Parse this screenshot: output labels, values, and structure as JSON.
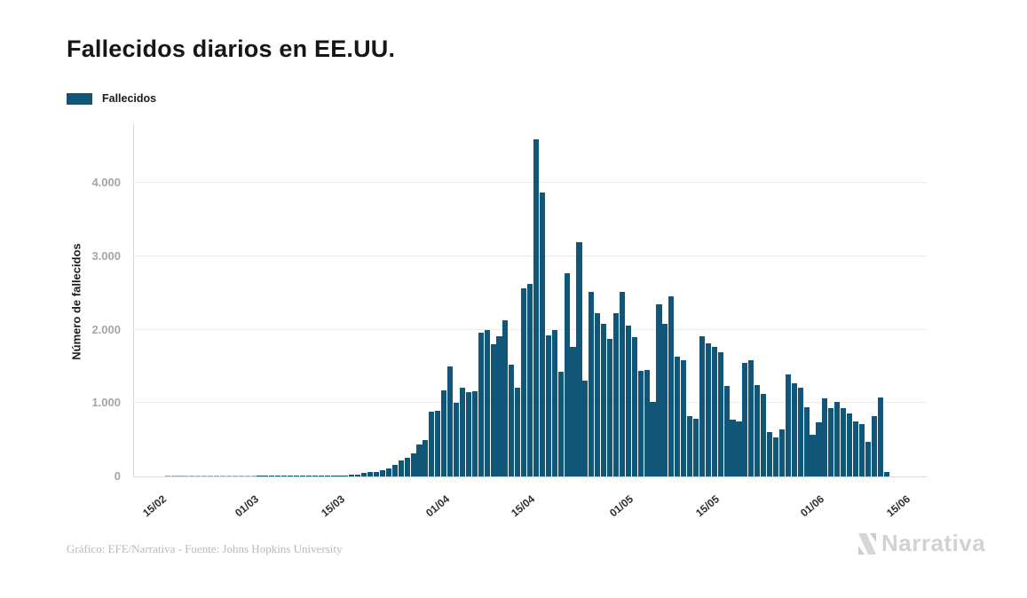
{
  "header": {
    "title": "Fallecidos diarios en EE.UU."
  },
  "legend": {
    "items": [
      {
        "label": "Fallecidos",
        "color": "#0f5679"
      }
    ]
  },
  "footer": {
    "credit": "Gráfico: EFE/Narrativa - Fuente: Johns Hopkins University"
  },
  "logo": {
    "text": "Narrativa",
    "color": "#d2d2d2"
  },
  "colors": {
    "bar": "#0f5679",
    "grid": "#ebebeb",
    "axis": "#d8d8d8",
    "ytick_text": "#a5a5a5",
    "xtick_text": "#2d2d2d"
  },
  "chart_data": {
    "type": "bar",
    "title": "Fallecidos diarios en EE.UU.",
    "series_name": "Fallecidos",
    "xlabel": "",
    "ylabel": "Número de fallecidos",
    "bar_color": "#0f5679",
    "grid": true,
    "legend_position": "top-left",
    "ylim": [
      0,
      4800
    ],
    "yticks": [
      {
        "label": "0",
        "value": 0
      },
      {
        "label": "1.000",
        "value": 1000
      },
      {
        "label": "2.000",
        "value": 2000
      },
      {
        "label": "3.000",
        "value": 3000
      },
      {
        "label": "4.000",
        "value": 4000
      }
    ],
    "xticks": [
      {
        "label": "15/02",
        "day_index": 5
      },
      {
        "label": "01/03",
        "day_index": 20
      },
      {
        "label": "15/03",
        "day_index": 34
      },
      {
        "label": "01/04",
        "day_index": 51
      },
      {
        "label": "15/04",
        "day_index": 65
      },
      {
        "label": "01/05",
        "day_index": 81
      },
      {
        "label": "15/05",
        "day_index": 95
      },
      {
        "label": "01/06",
        "day_index": 112
      },
      {
        "label": "15/06",
        "day_index": 126
      }
    ],
    "dates": [
      "10/02",
      "11/02",
      "12/02",
      "13/02",
      "14/02",
      "15/02",
      "16/02",
      "17/02",
      "18/02",
      "19/02",
      "20/02",
      "21/02",
      "22/02",
      "23/02",
      "24/02",
      "25/02",
      "26/02",
      "27/02",
      "28/02",
      "29/02",
      "01/03",
      "02/03",
      "03/03",
      "04/03",
      "05/03",
      "06/03",
      "07/03",
      "08/03",
      "09/03",
      "10/03",
      "11/03",
      "12/03",
      "13/03",
      "14/03",
      "15/03",
      "16/03",
      "17/03",
      "18/03",
      "19/03",
      "20/03",
      "21/03",
      "22/03",
      "23/03",
      "24/03",
      "25/03",
      "26/03",
      "27/03",
      "28/03",
      "29/03",
      "30/03",
      "31/03",
      "01/04",
      "02/04",
      "03/04",
      "04/04",
      "05/04",
      "06/04",
      "07/04",
      "08/04",
      "09/04",
      "10/04",
      "11/04",
      "12/04",
      "13/04",
      "14/04",
      "15/04",
      "16/04",
      "17/04",
      "18/04",
      "19/04",
      "20/04",
      "21/04",
      "22/04",
      "23/04",
      "24/04",
      "25/04",
      "26/04",
      "27/04",
      "28/04",
      "29/04",
      "30/04",
      "01/05",
      "02/05",
      "03/05",
      "04/05",
      "05/05",
      "06/05",
      "07/05",
      "08/05",
      "09/05",
      "10/05",
      "11/05",
      "12/05",
      "13/05",
      "14/05",
      "15/05",
      "16/05",
      "17/05",
      "18/05",
      "19/05",
      "20/05",
      "21/05",
      "22/05",
      "23/05",
      "24/05",
      "25/05",
      "26/05",
      "27/05",
      "28/05",
      "29/05",
      "30/05",
      "31/05",
      "01/06",
      "02/06",
      "03/06",
      "04/06",
      "05/06",
      "06/06",
      "07/06",
      "08/06",
      "09/06",
      "10/06",
      "11/06"
    ],
    "values": [
      0,
      0,
      0,
      0,
      0,
      1,
      1,
      1,
      1,
      1,
      1,
      1,
      1,
      1,
      1,
      1,
      1,
      1,
      1,
      2,
      3,
      18,
      6,
      10,
      4,
      14,
      5,
      7,
      10,
      8,
      12,
      6,
      10,
      12,
      14,
      20,
      28,
      45,
      60,
      65,
      90,
      115,
      155,
      215,
      260,
      320,
      430,
      495,
      880,
      900,
      1175,
      1495,
      1000,
      1215,
      1150,
      1160,
      1960,
      1990,
      1800,
      1910,
      2130,
      1520,
      1210,
      2560,
      2620,
      4590,
      3870,
      1920,
      2000,
      1430,
      2770,
      1760,
      3190,
      1310,
      2510,
      2220,
      2080,
      1870,
      2230,
      2510,
      2060,
      1900,
      1440,
      1450,
      1020,
      2340,
      2080,
      2460,
      1630,
      1580,
      820,
      790,
      1905,
      1815,
      1765,
      1690,
      1230,
      775,
      750,
      1550,
      1580,
      1250,
      1130,
      610,
      530,
      640,
      1390,
      1270,
      1210,
      940,
      570,
      740,
      1070,
      930,
      1020,
      930,
      860,
      750,
      710,
      470,
      820,
      1080,
      65
    ]
  }
}
